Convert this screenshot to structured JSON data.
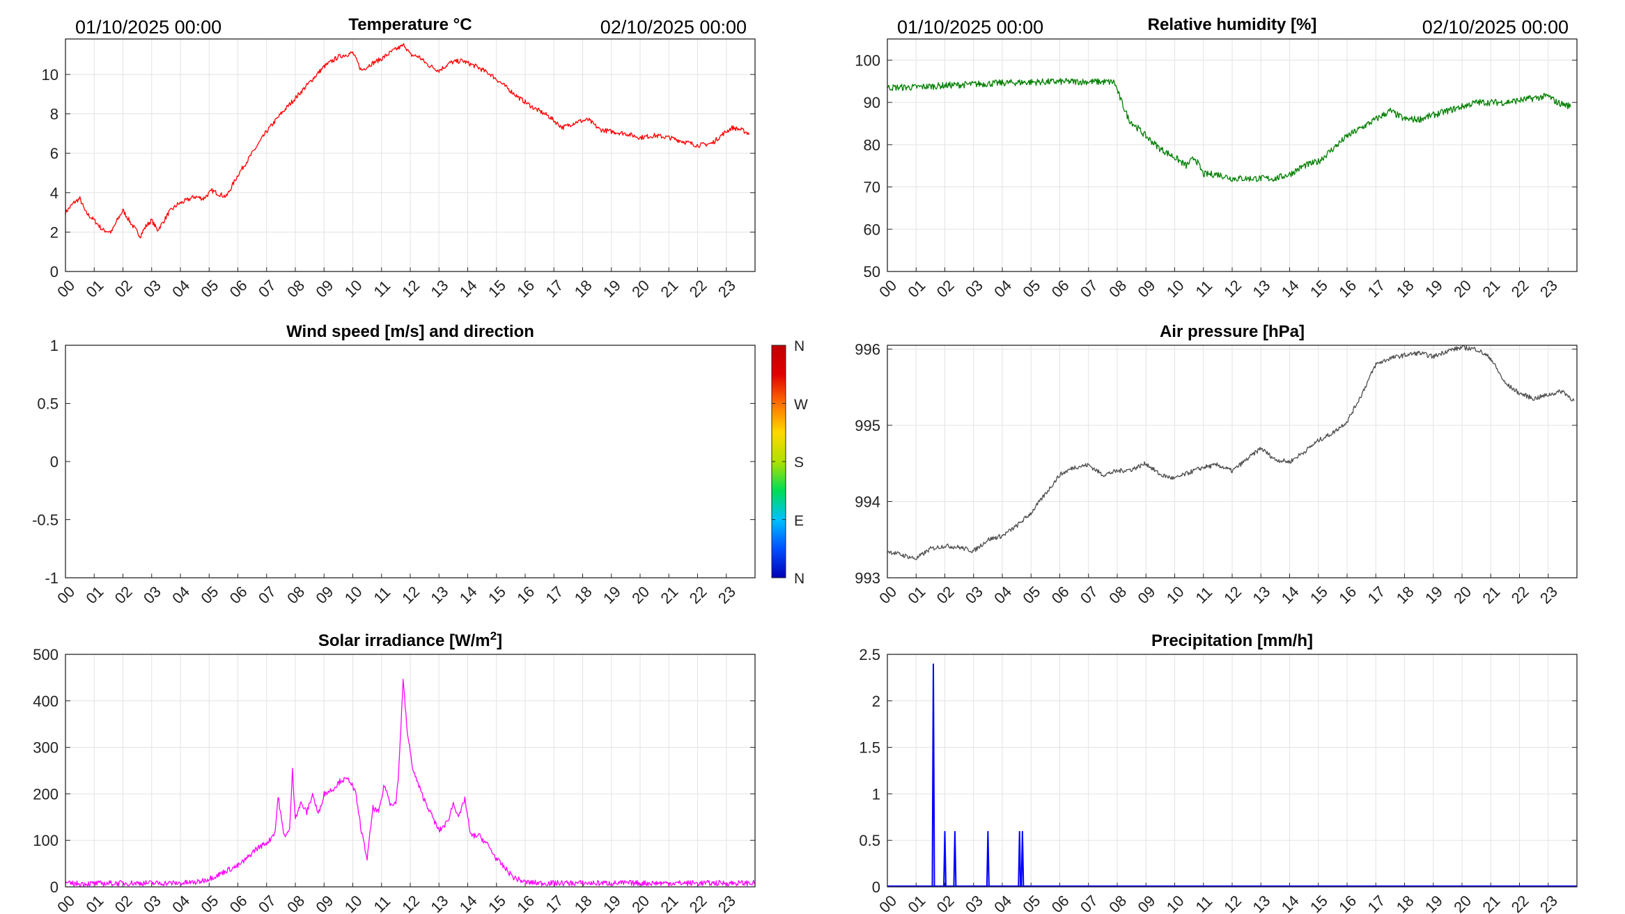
{
  "date_start": "01/10/2025 00:00",
  "date_end": "02/10/2025 00:00",
  "hour_labels": [
    "00",
    "01",
    "02",
    "03",
    "04",
    "05",
    "06",
    "07",
    "08",
    "09",
    "10",
    "11",
    "12",
    "13",
    "14",
    "15",
    "16",
    "17",
    "18",
    "19",
    "20",
    "21",
    "22",
    "23"
  ],
  "wind_colorbar": {
    "labels": [
      "N",
      "W",
      "S",
      "E",
      "N"
    ],
    "colors": [
      "#0000b4",
      "#0050ff",
      "#00c0ff",
      "#00dd55",
      "#b0e000",
      "#ffd800",
      "#ff7000",
      "#e00000",
      "#c00000"
    ]
  },
  "chart_data": [
    {
      "type": "line",
      "title": "Temperature °C",
      "color": "#ff0000",
      "ylim": [
        0,
        11.8
      ],
      "yticks": [
        0,
        2,
        4,
        6,
        8,
        10
      ],
      "ytick_labels": [
        "0",
        "2",
        "4",
        "6",
        "8",
        "10"
      ],
      "xlim": [
        0,
        24
      ],
      "grid": true,
      "show_dates": true,
      "x": [
        0,
        0.3,
        0.5,
        0.7,
        1,
        1.3,
        1.6,
        1.8,
        2,
        2.3,
        2.6,
        2.8,
        3,
        3.2,
        3.4,
        3.6,
        3.9,
        4.2,
        4.5,
        4.8,
        5.1,
        5.4,
        5.6,
        6,
        6.5,
        7,
        7.5,
        8,
        8.5,
        9,
        9.5,
        10,
        10.3,
        10.6,
        11,
        11.4,
        11.8,
        12,
        12.3,
        12.6,
        13,
        13.4,
        13.8,
        14.3,
        14.8,
        15.3,
        15.8,
        16.3,
        16.8,
        17.3,
        17.8,
        18.2,
        18.6,
        19,
        19.5,
        20,
        20.5,
        21,
        21.5,
        22,
        22.5,
        22.9,
        23.2,
        23.5,
        23.8
      ],
      "y": [
        3.0,
        3.5,
        3.7,
        3.0,
        2.6,
        2.1,
        2.0,
        2.6,
        3.1,
        2.4,
        1.8,
        2.3,
        2.6,
        2.1,
        2.5,
        3.0,
        3.4,
        3.6,
        3.8,
        3.7,
        4.1,
        3.9,
        3.8,
        4.9,
        6.0,
        7.1,
        8.0,
        8.8,
        9.6,
        10.4,
        10.9,
        11.1,
        10.2,
        10.5,
        10.8,
        11.2,
        11.5,
        11.0,
        10.9,
        10.5,
        10.2,
        10.6,
        10.7,
        10.4,
        10.0,
        9.4,
        8.8,
        8.3,
        7.9,
        7.3,
        7.6,
        7.7,
        7.2,
        7.1,
        7.0,
        6.8,
        6.9,
        6.8,
        6.6,
        6.4,
        6.5,
        7.0,
        7.3,
        7.2,
        7.0
      ],
      "jitter": 0.12
    },
    {
      "type": "line",
      "title": "Relative humidity [%]",
      "color": "#007f00",
      "ylim": [
        50,
        105
      ],
      "yticks": [
        50,
        60,
        70,
        80,
        90,
        100
      ],
      "ytick_labels": [
        "50",
        "60",
        "70",
        "80",
        "90",
        "100"
      ],
      "xlim": [
        0,
        24
      ],
      "grid": true,
      "show_dates": true,
      "x": [
        0,
        1,
        2,
        3,
        4,
        5,
        6,
        7,
        7.9,
        8.1,
        8.4,
        9,
        9.5,
        10,
        10.4,
        10.7,
        11,
        11.5,
        12,
        12.5,
        13,
        13.5,
        14,
        14.5,
        15,
        15.5,
        16,
        16.5,
        17,
        17.5,
        18,
        18.5,
        19,
        19.5,
        20,
        20.5,
        21,
        21.5,
        22,
        22.5,
        23,
        23.3,
        23.8
      ],
      "y": [
        93.5,
        93.6,
        94.0,
        94.3,
        94.6,
        94.8,
        94.9,
        94.9,
        94.8,
        91,
        86,
        82,
        79,
        77,
        75,
        77,
        73,
        73,
        72,
        72,
        72,
        72,
        73,
        75,
        76,
        79,
        82,
        84,
        86,
        88,
        86,
        86,
        87,
        88,
        89,
        90,
        90,
        90,
        90.5,
        91,
        91.5,
        90,
        89
      ],
      "jitter": 0.8
    },
    {
      "type": "line",
      "title": "Wind speed [m/s] and direction",
      "color": "#000000",
      "ylim": [
        -1,
        1
      ],
      "yticks": [
        -1,
        -0.5,
        0,
        0.5,
        1
      ],
      "ytick_labels": [
        "-1",
        "-0.5",
        "0",
        "0.5",
        "1"
      ],
      "xlim": [
        0,
        24
      ],
      "grid": false,
      "show_dates": false,
      "x": [],
      "y": [],
      "jitter": 0
    },
    {
      "type": "line",
      "title": "Air pressure [hPa]",
      "color": "#4d4d4d",
      "ylim": [
        993,
        996.05
      ],
      "yticks": [
        993,
        994,
        995,
        996
      ],
      "ytick_labels": [
        "993",
        "994",
        "995",
        "996"
      ],
      "xlim": [
        0,
        24
      ],
      "grid": true,
      "show_dates": false,
      "x": [
        0,
        0.5,
        1,
        1.5,
        2,
        2.5,
        3,
        3.5,
        4,
        4.5,
        5,
        5.5,
        6,
        6.5,
        7,
        7.5,
        8,
        8.5,
        9,
        9.5,
        10,
        10.5,
        11,
        11.5,
        12,
        12.5,
        13,
        13.5,
        14,
        14.5,
        15,
        15.5,
        16,
        16.5,
        17,
        17.5,
        18,
        18.5,
        19,
        19.5,
        20,
        20.5,
        21,
        21.5,
        22,
        22.5,
        23,
        23.5,
        23.9
      ],
      "y": [
        993.35,
        993.3,
        993.25,
        993.38,
        993.42,
        993.4,
        993.35,
        993.5,
        993.55,
        993.68,
        993.85,
        994.1,
        994.35,
        994.45,
        994.48,
        994.35,
        994.4,
        994.42,
        994.5,
        994.35,
        994.3,
        994.38,
        994.45,
        994.48,
        994.4,
        994.55,
        994.7,
        994.55,
        994.52,
        994.65,
        994.8,
        994.9,
        995.05,
        995.4,
        995.8,
        995.88,
        995.92,
        995.95,
        995.9,
        995.98,
        996.02,
        996.0,
        995.88,
        995.55,
        995.42,
        995.35,
        995.4,
        995.45,
        995.32
      ],
      "jitter": 0.03
    },
    {
      "type": "line",
      "title": "Solar irradiance [W/m2]",
      "color": "#ff00ff",
      "ylim": [
        0,
        500
      ],
      "yticks": [
        0,
        100,
        200,
        300,
        400,
        500
      ],
      "ytick_labels": [
        "0",
        "100",
        "200",
        "300",
        "400",
        "500"
      ],
      "xlim": [
        0,
        24
      ],
      "grid": true,
      "show_dates": false,
      "x": [
        0,
        1,
        2,
        3,
        4,
        4.6,
        5,
        5.3,
        5.6,
        6,
        6.3,
        6.6,
        7,
        7.1,
        7.3,
        7.4,
        7.6,
        7.8,
        7.9,
        8,
        8.2,
        8.4,
        8.6,
        8.8,
        9,
        9.3,
        9.6,
        9.9,
        10.1,
        10.3,
        10.5,
        10.7,
        10.9,
        11.1,
        11.3,
        11.5,
        11.6,
        11.75,
        11.9,
        12.1,
        12.4,
        12.7,
        13,
        13.3,
        13.5,
        13.7,
        13.9,
        14.1,
        14.4,
        14.7,
        15,
        15.3,
        15.6,
        16,
        16.5,
        17,
        18,
        19,
        20,
        21,
        22,
        23,
        24
      ],
      "y": [
        7,
        7,
        8,
        8,
        8,
        10,
        18,
        25,
        35,
        45,
        60,
        80,
        95,
        100,
        120,
        195,
        110,
        120,
        250,
        150,
        180,
        160,
        200,
        155,
        200,
        210,
        230,
        230,
        200,
        120,
        60,
        170,
        160,
        220,
        180,
        180,
        250,
        445,
        330,
        250,
        200,
        160,
        120,
        140,
        180,
        150,
        190,
        110,
        110,
        90,
        60,
        40,
        20,
        10,
        8,
        8,
        8,
        8,
        8,
        8,
        8,
        8,
        8
      ],
      "jitter": 6
    },
    {
      "type": "bar",
      "title": "Precipitation [mm/h]",
      "color": "#0000ff",
      "ylim": [
        0,
        2.5
      ],
      "yticks": [
        0,
        0.5,
        1,
        1.5,
        2,
        2.5
      ],
      "ytick_labels": [
        "0",
        "0.5",
        "1",
        "1.5",
        "2",
        "2.5"
      ],
      "xlim": [
        0,
        24
      ],
      "grid": true,
      "show_dates": false,
      "x": [
        1.6,
        2.0,
        2.35,
        3.5,
        4.6,
        4.7
      ],
      "y": [
        2.4,
        0.6,
        0.6,
        0.6,
        0.6,
        0.6
      ],
      "jitter": 0
    }
  ]
}
